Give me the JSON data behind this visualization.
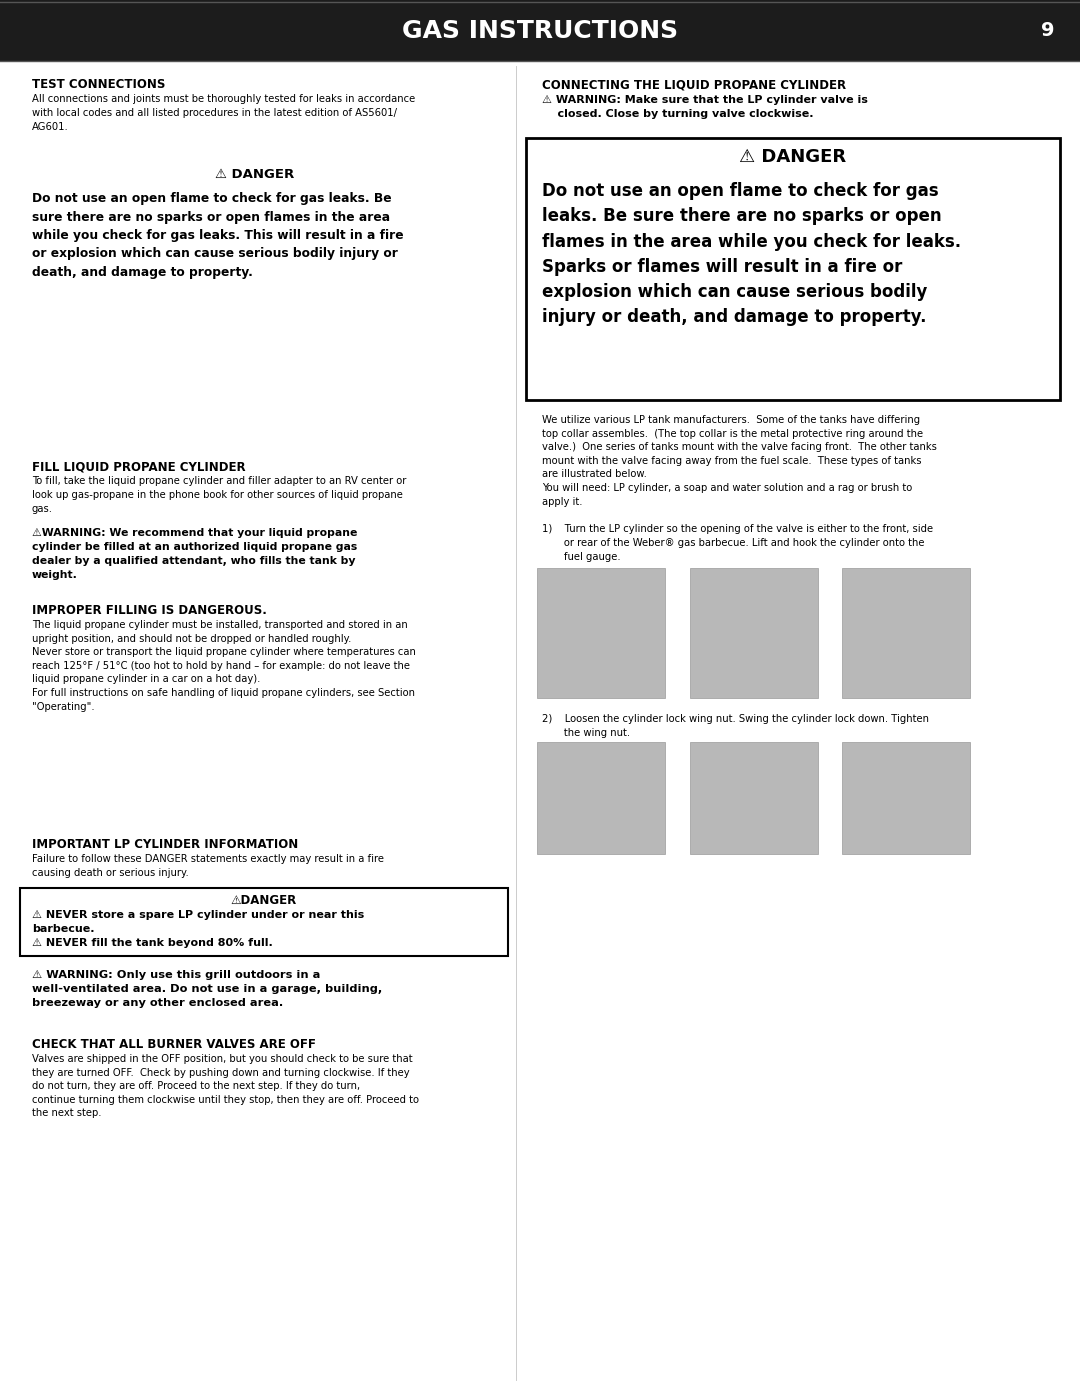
{
  "page_title": "GAS INSTRUCTIONS",
  "page_number": "9",
  "header_bg": "#1c1c1c",
  "header_text_color": "#ffffff",
  "bg_color": "#ffffff",
  "figsize": [
    10.8,
    13.97
  ],
  "dpi": 100,
  "sections": {
    "test_connections_title": "TEST CONNECTIONS",
    "test_connections_body": "All connections and joints must be thoroughly tested for leaks in accordance\nwith local codes and all listed procedures in the latest edition of AS5601/\nAG601.",
    "danger_left_title": "⚠ DANGER",
    "danger_left_body": "Do not use an open flame to check for gas leaks. Be\nsure there are no sparks or open flames in the area\nwhile you check for gas leaks. This will result in a fire\nor explosion which can cause serious bodily injury or\ndeath, and damage to property.",
    "fill_title": "FILL LIQUID PROPANE CYLINDER",
    "fill_body": "To fill, take the liquid propane cylinder and filler adapter to an RV center or\nlook up gas-propane in the phone book for other sources of liquid propane\ngas.",
    "fill_warning": "⚠WARNING: We recommend that your liquid propane\ncylinder be filled at an authorized liquid propane gas\ndealer by a qualified attendant, who fills the tank by\nweight.",
    "improper_title": "IMPROPER FILLING IS DANGEROUS.",
    "improper_body": "The liquid propane cylinder must be installed, transported and stored in an\nupright position, and should not be dropped or handled roughly.\nNever store or transport the liquid propane cylinder where temperatures can\nreach 125°F / 51°C (too hot to hold by hand – for example: do not leave the\nliquid propane cylinder in a car on a hot day).\nFor full instructions on safe handling of liquid propane cylinders, see Section\n\"Operating\".",
    "important_title": "IMPORTANT LP CYLINDER INFORMATION",
    "important_body": "Failure to follow these DANGER statements exactly may result in a fire\ncausing death or serious injury.",
    "danger_box_title": "⚠DANGER",
    "danger_box_line1": "⚠ NEVER store a spare LP cylinder under or near this",
    "danger_box_line2": "barbecue.",
    "danger_box_line3": "⚠ NEVER fill the tank beyond 80% full.",
    "warning_outdoor": "⚠ WARNING: Only use this grill outdoors in a\nwell-ventilated area. Do not use in a garage, building,\nbreezeway or any other enclosed area.",
    "check_title": "CHECK THAT ALL BURNER VALVES ARE OFF",
    "check_body": "Valves are shipped in the OFF position, but you should check to be sure that\nthey are turned OFF.  Check by pushing down and turning clockwise. If they\ndo not turn, they are off. Proceed to the next step. If they do turn,\ncontinue turning them clockwise until they stop, then they are off. Proceed to\nthe next step.",
    "connecting_title": "CONNECTING THE LIQUID PROPANE CYLINDER",
    "connecting_warning": "⚠ WARNING: Make sure that the LP cylinder valve is\n    closed. Close by turning valve clockwise.",
    "danger_right_title": "⚠ DANGER",
    "danger_right_body": "Do not use an open flame to check for gas\nleaks. Be sure there are no sparks or open\nflames in the area while you check for leaks.\nSparks or flames will result in a fire or\nexplosion which can cause serious bodily\ninjury or death, and damage to property.",
    "lp_tank_body": "We utilize various LP tank manufacturers.  Some of the tanks have differing\ntop collar assembles.  (The top collar is the metal protective ring around the\nvalve.)  One series of tanks mount with the valve facing front.  The other tanks\nmount with the valve facing away from the fuel scale.  These types of tanks\nare illustrated below.\nYou will need: LP cylinder, a soap and water solution and a rag or brush to\napply it.",
    "step1": "1)    Turn the LP cylinder so the opening of the valve is either to the front, side\n       or rear of the Weber® gas barbecue. Lift and hook the cylinder onto the\n       fuel gauge.",
    "step2": "2)    Loosen the cylinder lock wing nut. Swing the cylinder lock down. Tighten\n       the wing nut."
  }
}
